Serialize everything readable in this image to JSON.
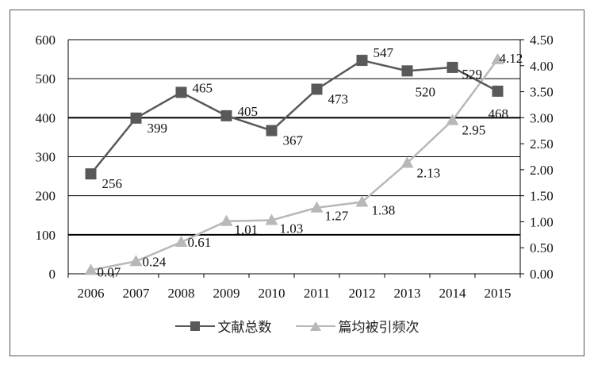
{
  "chart_data": {
    "type": "line",
    "categories": [
      "2006",
      "2007",
      "2008",
      "2009",
      "2010",
      "2011",
      "2012",
      "2013",
      "2014",
      "2015"
    ],
    "series": [
      {
        "name": "文献总数",
        "axis": "left",
        "marker": "square",
        "color": "#595959",
        "values": [
          256,
          399,
          465,
          405,
          367,
          473,
          547,
          520,
          529,
          468
        ],
        "labels": [
          "256",
          "399",
          "465",
          "405",
          "367",
          "473",
          "547",
          "520",
          "529",
          "468"
        ]
      },
      {
        "name": "篇均被引频次",
        "axis": "right",
        "marker": "triangle",
        "color": "#b8b8b8",
        "values": [
          0.07,
          0.24,
          0.61,
          1.01,
          1.03,
          1.27,
          1.38,
          2.13,
          2.95,
          4.12
        ],
        "labels": [
          "0.07",
          "0.24",
          "0.61",
          "1.01",
          "1.03",
          "1.27",
          "1.38",
          "2.13",
          "2.95",
          "4.12"
        ]
      }
    ],
    "left_axis": {
      "ylim": [
        0,
        600
      ],
      "ticks": [
        "0",
        "100",
        "200",
        "300",
        "400",
        "500",
        "600"
      ]
    },
    "right_axis": {
      "ylim": [
        0,
        4.5
      ],
      "ticks": [
        "0.00",
        "0.50",
        "1.00",
        "1.50",
        "2.00",
        "2.50",
        "3.00",
        "3.50",
        "4.00",
        "4.50"
      ]
    },
    "grid": true,
    "legend": "bottom"
  }
}
